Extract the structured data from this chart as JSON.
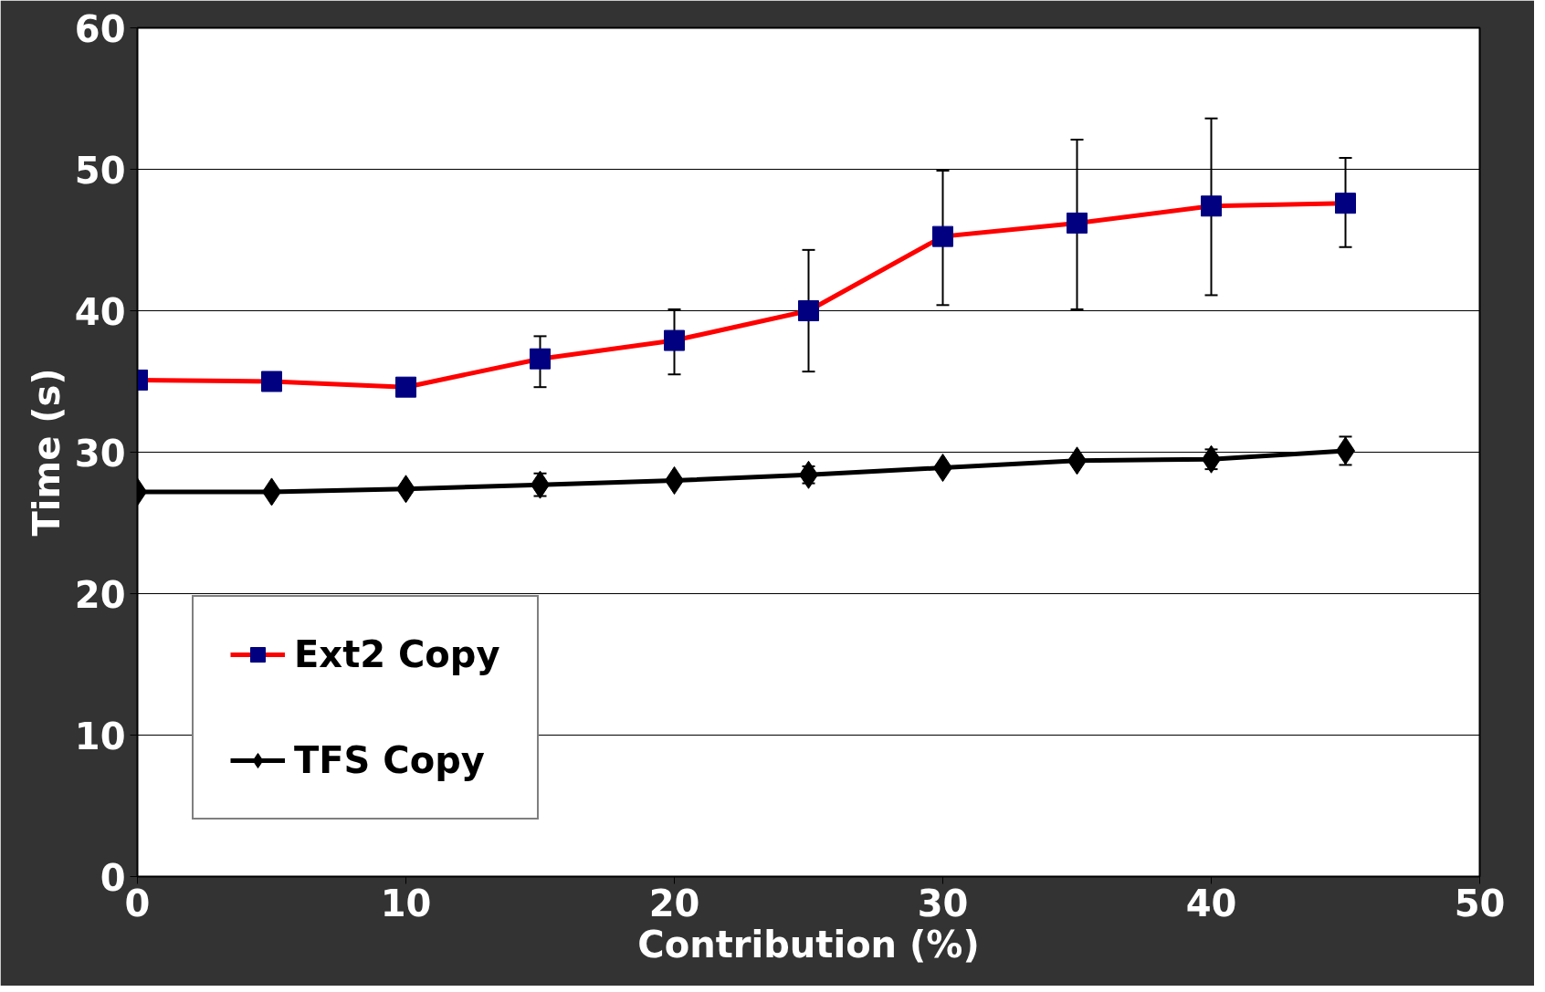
{
  "chart_data": {
    "type": "line",
    "xlabel": "Contribution (%)",
    "ylabel": "Time (s)",
    "x": [
      0,
      5,
      10,
      15,
      20,
      25,
      30,
      35,
      40,
      45
    ],
    "series": [
      {
        "name": "Ext2 Copy",
        "color": "#ff0000",
        "colors": [
          "#000080",
          "#000080",
          "#000080",
          "#000080",
          "#000080",
          "#000080",
          "#000080",
          "#000080",
          "#000080",
          "#000080"
        ],
        "marker": "square",
        "values": [
          35.1,
          35.0,
          34.6,
          36.6,
          37.9,
          40.0,
          45.25,
          46.2,
          47.4,
          47.6
        ],
        "errors": [
          null,
          null,
          null,
          [
            34.6,
            38.2
          ],
          [
            35.5,
            40.1
          ],
          [
            35.7,
            44.3
          ],
          [
            40.4,
            49.9
          ],
          [
            40.1,
            52.1
          ],
          [
            41.1,
            53.6
          ],
          [
            44.5,
            50.8
          ]
        ]
      },
      {
        "name": "TFS Copy",
        "color": "#000000",
        "marker": "diamond",
        "values": [
          27.2,
          27.2,
          27.4,
          27.7,
          28.0,
          28.4,
          28.9,
          29.4,
          29.5,
          30.1
        ],
        "errors": [
          null,
          null,
          null,
          [
            26.9,
            28.5
          ],
          null,
          [
            27.8,
            29.0
          ],
          null,
          null,
          [
            28.8,
            30.2
          ],
          [
            29.1,
            31.1
          ]
        ]
      }
    ],
    "xlim": [
      0,
      50
    ],
    "xticks": [
      0,
      10,
      20,
      30,
      40,
      50
    ],
    "ylim": [
      0,
      60
    ],
    "yticks": [
      0,
      10,
      20,
      30,
      40,
      50,
      60
    ],
    "grid": "y",
    "legend": "bottom left"
  }
}
